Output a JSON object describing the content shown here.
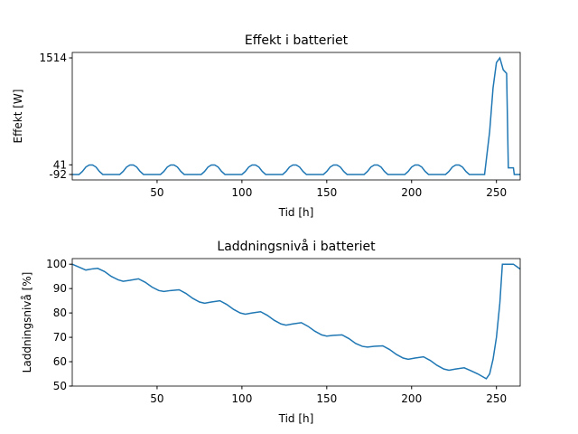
{
  "chart_data": [
    {
      "type": "line",
      "title": "Effekt i batteriet",
      "xlabel": "Tid [h]",
      "ylabel": "Effekt [W]",
      "xlim": [
        0,
        264
      ],
      "ylim": [
        -167,
        1589
      ],
      "xticks": [
        50,
        100,
        150,
        200,
        250
      ],
      "yticks": [
        -92,
        41,
        1514
      ],
      "series": [
        {
          "name": "Effekt",
          "color": "#1f77b4",
          "x": [
            0,
            2,
            4,
            6,
            8,
            10,
            12,
            14,
            16,
            18,
            20,
            22,
            24,
            26,
            28,
            30,
            32,
            34,
            36,
            38,
            40,
            42,
            44,
            46,
            48,
            50,
            52,
            54,
            56,
            58,
            60,
            62,
            64,
            66,
            68,
            70,
            72,
            74,
            76,
            78,
            80,
            82,
            84,
            86,
            88,
            90,
            92,
            94,
            96,
            98,
            100,
            102,
            104,
            106,
            108,
            110,
            112,
            114,
            116,
            118,
            120,
            122,
            124,
            126,
            128,
            130,
            132,
            134,
            136,
            138,
            140,
            142,
            144,
            146,
            148,
            150,
            152,
            154,
            156,
            158,
            160,
            162,
            164,
            166,
            168,
            170,
            172,
            174,
            176,
            178,
            180,
            182,
            184,
            186,
            188,
            190,
            192,
            194,
            196,
            198,
            200,
            202,
            204,
            206,
            208,
            210,
            212,
            214,
            216,
            218,
            220,
            222,
            224,
            226,
            228,
            230,
            232,
            234,
            236,
            238,
            240,
            242,
            243,
            246,
            248,
            250,
            252,
            254,
            256,
            257,
            260,
            260.5,
            264
          ],
          "values": [
            -92,
            -92,
            -92,
            -50,
            10,
            38,
            38,
            10,
            -50,
            -92,
            -92,
            -92,
            -92,
            -92,
            -92,
            -50,
            10,
            38,
            38,
            10,
            -50,
            -92,
            -92,
            -92,
            -92,
            -92,
            -92,
            -50,
            10,
            38,
            38,
            10,
            -50,
            -92,
            -92,
            -92,
            -92,
            -92,
            -92,
            -50,
            10,
            38,
            38,
            10,
            -50,
            -92,
            -92,
            -92,
            -92,
            -92,
            -92,
            -50,
            10,
            38,
            38,
            10,
            -50,
            -92,
            -92,
            -92,
            -92,
            -92,
            -92,
            -50,
            10,
            38,
            38,
            10,
            -50,
            -92,
            -92,
            -92,
            -92,
            -92,
            -92,
            -50,
            10,
            38,
            38,
            10,
            -50,
            -92,
            -92,
            -92,
            -92,
            -92,
            -92,
            -50,
            10,
            38,
            38,
            10,
            -50,
            -92,
            -92,
            -92,
            -92,
            -92,
            -92,
            -50,
            10,
            38,
            38,
            10,
            -50,
            -92,
            -92,
            -92,
            -92,
            -92,
            -92,
            -50,
            10,
            38,
            38,
            10,
            -50,
            -92,
            -92,
            -92,
            -92,
            -92,
            -92,
            500,
            1100,
            1450,
            1514,
            1350,
            1300,
            0,
            0,
            -92,
            -92
          ]
        }
      ]
    },
    {
      "type": "line",
      "title": "Laddningsnivå i batteriet",
      "xlabel": "Tid [h]",
      "ylabel": "Laddningsnivå [%]",
      "xlim": [
        0,
        264
      ],
      "ylim": [
        50,
        102.3
      ],
      "xticks": [
        50,
        100,
        150,
        200,
        250
      ],
      "yticks": [
        50,
        60,
        70,
        80,
        90,
        100
      ],
      "series": [
        {
          "name": "Laddningsnivå",
          "color": "#1f77b4",
          "x": [
            0,
            4,
            8,
            12,
            15,
            19,
            23,
            27,
            30,
            34,
            39,
            43,
            47,
            51,
            54,
            58,
            63,
            67,
            71,
            75,
            78,
            82,
            87,
            91,
            95,
            99,
            102,
            106,
            111,
            115,
            119,
            123,
            126,
            130,
            135,
            139,
            143,
            147,
            150,
            154,
            159,
            163,
            167,
            171,
            174,
            178,
            183,
            187,
            191,
            195,
            198,
            202,
            207,
            211,
            215,
            219,
            222,
            226,
            231,
            235,
            239,
            242,
            244,
            246,
            248,
            250,
            252,
            253.5,
            260,
            262,
            264
          ],
          "values": [
            100,
            98.8,
            97.6,
            98.1,
            98.3,
            97,
            95,
            93.6,
            93,
            93.4,
            94,
            92.6,
            90.6,
            89.2,
            88.8,
            89.2,
            89.5,
            88,
            86,
            84.5,
            84,
            84.5,
            85,
            83.5,
            81.5,
            80,
            79.5,
            80,
            80.5,
            79,
            77,
            75.5,
            75,
            75.5,
            76,
            74.5,
            72.5,
            71,
            70.5,
            70.8,
            71,
            69.5,
            67.5,
            66.3,
            66,
            66.3,
            66.5,
            65,
            63,
            61.5,
            61,
            61.5,
            62,
            60.5,
            58.5,
            57,
            56.5,
            57,
            57.5,
            56.3,
            55,
            53.8,
            53,
            55,
            61,
            70,
            84,
            100,
            100,
            99,
            98
          ]
        }
      ]
    }
  ]
}
